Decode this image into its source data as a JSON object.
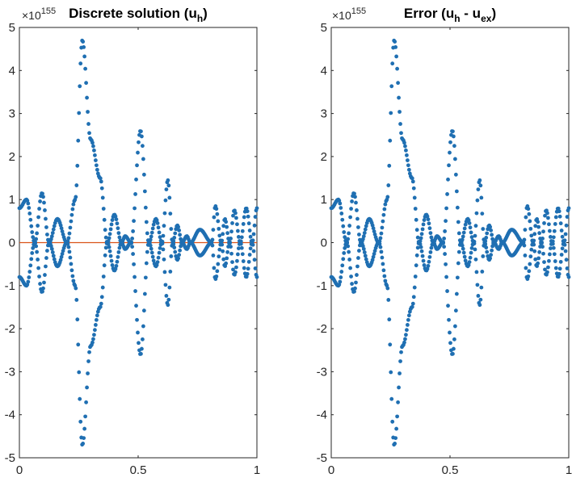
{
  "chart_data": [
    {
      "type": "scatter",
      "title_main": "Discrete solution (u",
      "title_sub": "h",
      "title_end": ")",
      "exponent_prefix": "×10",
      "exponent_power": "155",
      "xlim": [
        0,
        1
      ],
      "ylim": [
        -5,
        5
      ],
      "xticks": [
        "0",
        "0.5",
        "1"
      ],
      "yticks": [
        "5",
        "4",
        "3",
        "2",
        "1",
        "0",
        "-1",
        "-2",
        "-3",
        "-4",
        "-5"
      ],
      "grid": false,
      "marker_color": "#1f6fb2",
      "line_color": "#d9541a",
      "zero_line": {
        "x": [
          0,
          1
        ],
        "y": [
          0,
          0
        ]
      },
      "envelope": {
        "x": [
          0,
          0.03,
          0.065,
          0.095,
          0.125,
          0.16,
          0.2,
          0.235,
          0.265,
          0.3,
          0.34,
          0.37,
          0.4,
          0.43,
          0.445,
          0.47,
          0.51,
          0.545,
          0.575,
          0.6,
          0.625,
          0.645,
          0.665,
          0.685,
          0.705,
          0.72,
          0.76,
          0.81,
          0.825,
          0.85,
          0.865,
          0.885,
          0.905,
          0.93,
          0.955,
          0.98,
          1
        ],
        "y": [
          0.8,
          1.0,
          0.0,
          1.15,
          0.0,
          0.55,
          0.0,
          1.0,
          4.7,
          2.4,
          1.5,
          0.0,
          0.65,
          0.0,
          0.15,
          0.0,
          2.6,
          0.0,
          0.55,
          0.0,
          1.45,
          0.0,
          0.4,
          0.0,
          0.15,
          0.0,
          0.3,
          0.0,
          0.85,
          0.0,
          0.55,
          0.0,
          0.75,
          0.0,
          0.8,
          0.0,
          0.8
        ]
      }
    },
    {
      "type": "scatter",
      "title_main": "Error (u",
      "title_sub": "h",
      "title_mid": " - u",
      "title_sub2": "ex",
      "title_end": ")",
      "exponent_prefix": "×10",
      "exponent_power": "155",
      "xlim": [
        0,
        1
      ],
      "ylim": [
        -5,
        5
      ],
      "xticks": [
        "0",
        "0.5",
        "1"
      ],
      "yticks": [
        "5",
        "4",
        "3",
        "2",
        "1",
        "0",
        "-1",
        "-2",
        "-3",
        "-4",
        "-5"
      ],
      "grid": false,
      "marker_color": "#1f6fb2",
      "envelope": {
        "x": [
          0,
          0.03,
          0.065,
          0.095,
          0.125,
          0.16,
          0.2,
          0.235,
          0.265,
          0.3,
          0.34,
          0.37,
          0.4,
          0.43,
          0.445,
          0.47,
          0.51,
          0.545,
          0.575,
          0.6,
          0.625,
          0.645,
          0.665,
          0.685,
          0.705,
          0.72,
          0.76,
          0.81,
          0.825,
          0.85,
          0.865,
          0.885,
          0.905,
          0.93,
          0.955,
          0.98,
          1
        ],
        "y": [
          0.8,
          1.0,
          0.0,
          1.15,
          0.0,
          0.55,
          0.0,
          1.0,
          4.7,
          2.4,
          1.5,
          0.0,
          0.65,
          0.0,
          0.15,
          0.0,
          2.6,
          0.0,
          0.55,
          0.0,
          1.45,
          0.0,
          0.4,
          0.0,
          0.15,
          0.0,
          0.3,
          0.0,
          0.85,
          0.0,
          0.55,
          0.0,
          0.75,
          0.0,
          0.8,
          0.0,
          0.8
        ]
      }
    }
  ]
}
